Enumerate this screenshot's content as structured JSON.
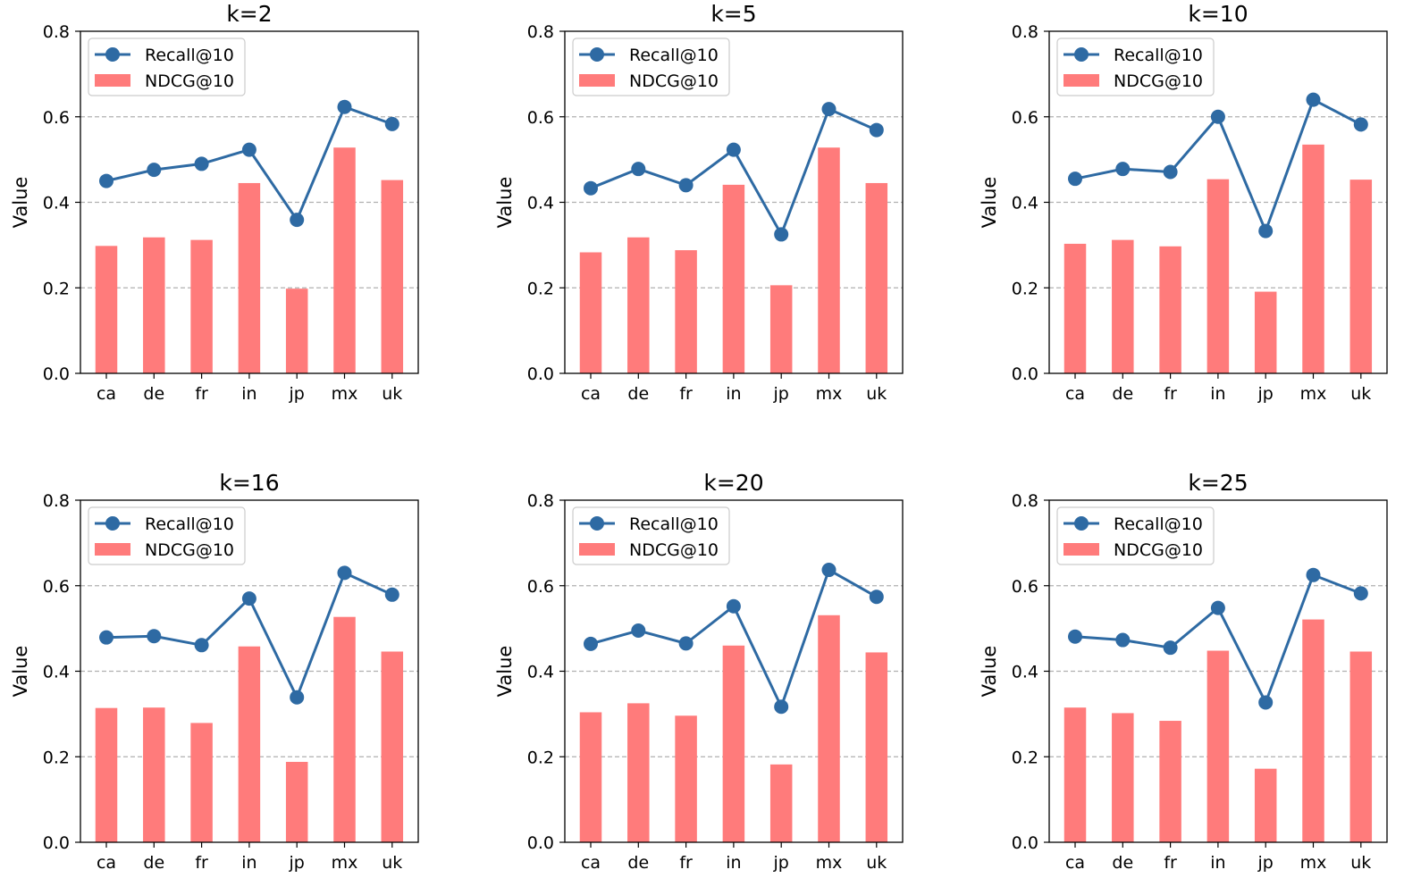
{
  "colors": {
    "recall": "#2e6aa3",
    "ndcg": "#ff7b7b",
    "grid": "#b0b0b0"
  },
  "chart_data": [
    {
      "type": "bar",
      "title": "k=2",
      "categories": [
        "ca",
        "de",
        "fr",
        "in",
        "jp",
        "mx",
        "uk"
      ],
      "ylabel": "Value",
      "ylim": [
        0,
        0.8
      ],
      "yticks": [
        "0.0",
        "0.2",
        "0.4",
        "0.6",
        "0.8"
      ],
      "grid": "horizontal dashed at 0.2, 0.4, 0.6",
      "legend": "upper-left",
      "series": [
        {
          "name": "Recall@10",
          "type": "line",
          "values": [
            0.45,
            0.476,
            0.49,
            0.523,
            0.359,
            0.623,
            0.583
          ]
        },
        {
          "name": "NDCG@10",
          "type": "bar",
          "values": [
            0.298,
            0.318,
            0.312,
            0.445,
            0.198,
            0.528,
            0.452
          ]
        }
      ]
    },
    {
      "type": "bar",
      "title": "k=5",
      "categories": [
        "ca",
        "de",
        "fr",
        "in",
        "jp",
        "mx",
        "uk"
      ],
      "ylabel": "Value",
      "ylim": [
        0,
        0.8
      ],
      "yticks": [
        "0.0",
        "0.2",
        "0.4",
        "0.6",
        "0.8"
      ],
      "grid": "horizontal dashed at 0.2, 0.4, 0.6",
      "legend": "upper-left",
      "series": [
        {
          "name": "Recall@10",
          "type": "line",
          "values": [
            0.433,
            0.478,
            0.44,
            0.523,
            0.325,
            0.618,
            0.569
          ]
        },
        {
          "name": "NDCG@10",
          "type": "bar",
          "values": [
            0.283,
            0.318,
            0.288,
            0.441,
            0.206,
            0.528,
            0.445
          ]
        }
      ]
    },
    {
      "type": "bar",
      "title": "k=10",
      "categories": [
        "ca",
        "de",
        "fr",
        "in",
        "jp",
        "mx",
        "uk"
      ],
      "ylabel": "Value",
      "ylim": [
        0,
        0.8
      ],
      "yticks": [
        "0.0",
        "0.2",
        "0.4",
        "0.6",
        "0.8"
      ],
      "grid": "horizontal dashed at 0.2, 0.4, 0.6",
      "legend": "upper-left",
      "series": [
        {
          "name": "Recall@10",
          "type": "line",
          "values": [
            0.455,
            0.478,
            0.471,
            0.6,
            0.333,
            0.64,
            0.582
          ]
        },
        {
          "name": "NDCG@10",
          "type": "bar",
          "values": [
            0.303,
            0.312,
            0.297,
            0.454,
            0.191,
            0.535,
            0.453
          ]
        }
      ]
    },
    {
      "type": "bar",
      "title": "k=16",
      "categories": [
        "ca",
        "de",
        "fr",
        "in",
        "jp",
        "mx",
        "uk"
      ],
      "ylabel": "Value",
      "ylim": [
        0,
        0.8
      ],
      "yticks": [
        "0.0",
        "0.2",
        "0.4",
        "0.6",
        "0.8"
      ],
      "grid": "horizontal dashed at 0.2, 0.4, 0.6",
      "legend": "upper-left",
      "series": [
        {
          "name": "Recall@10",
          "type": "line",
          "values": [
            0.479,
            0.482,
            0.461,
            0.57,
            0.339,
            0.63,
            0.579
          ]
        },
        {
          "name": "NDCG@10",
          "type": "bar",
          "values": [
            0.314,
            0.315,
            0.279,
            0.458,
            0.188,
            0.527,
            0.446
          ]
        }
      ]
    },
    {
      "type": "bar",
      "title": "k=20",
      "categories": [
        "ca",
        "de",
        "fr",
        "in",
        "jp",
        "mx",
        "uk"
      ],
      "ylabel": "Value",
      "ylim": [
        0,
        0.8
      ],
      "yticks": [
        "0.0",
        "0.2",
        "0.4",
        "0.6",
        "0.8"
      ],
      "grid": "horizontal dashed at 0.2, 0.4, 0.6",
      "legend": "upper-left",
      "series": [
        {
          "name": "Recall@10",
          "type": "line",
          "values": [
            0.464,
            0.495,
            0.465,
            0.552,
            0.317,
            0.637,
            0.574
          ]
        },
        {
          "name": "NDCG@10",
          "type": "bar",
          "values": [
            0.304,
            0.325,
            0.296,
            0.46,
            0.182,
            0.531,
            0.444
          ]
        }
      ]
    },
    {
      "type": "bar",
      "title": "k=25",
      "categories": [
        "ca",
        "de",
        "fr",
        "in",
        "jp",
        "mx",
        "uk"
      ],
      "ylabel": "Value",
      "ylim": [
        0,
        0.8
      ],
      "yticks": [
        "0.0",
        "0.2",
        "0.4",
        "0.6",
        "0.8"
      ],
      "grid": "horizontal dashed at 0.2, 0.4, 0.6",
      "legend": "upper-left",
      "series": [
        {
          "name": "Recall@10",
          "type": "line",
          "values": [
            0.481,
            0.473,
            0.455,
            0.548,
            0.327,
            0.625,
            0.582
          ]
        },
        {
          "name": "NDCG@10",
          "type": "bar",
          "values": [
            0.315,
            0.302,
            0.284,
            0.448,
            0.172,
            0.521,
            0.446
          ]
        }
      ]
    }
  ]
}
